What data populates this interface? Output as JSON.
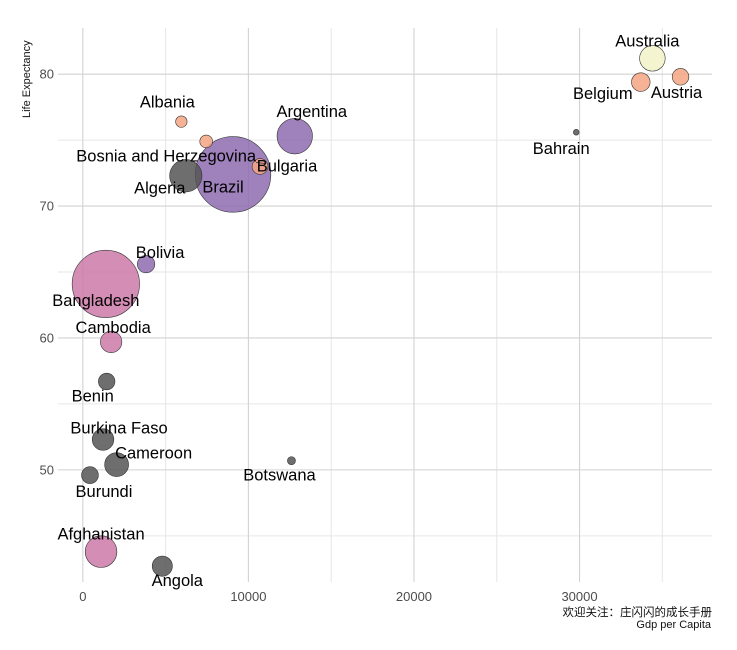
{
  "chart_data": {
    "type": "scatter",
    "subtype": "bubble",
    "xlabel": "Gdp per Capita",
    "ylabel": "Life Expectancy",
    "caption": "欢迎关注：庄闪闪的成长手册",
    "xlim": [
      -1500,
      38000
    ],
    "ylim": [
      41.5,
      83.5
    ],
    "x_ticks": [
      0,
      10000,
      20000,
      30000
    ],
    "y_ticks": [
      50,
      60,
      70,
      80
    ],
    "grid": true,
    "legend": "none",
    "points": [
      {
        "country": "Afghanistan",
        "x": 1100,
        "y": 43.8,
        "size": 31.9,
        "color": "#cc79a7"
      },
      {
        "country": "Albania",
        "x": 5950,
        "y": 76.4,
        "size": 3.6,
        "color": "#f4a582"
      },
      {
        "country": "Algeria",
        "x": 6220,
        "y": 72.3,
        "size": 33.3,
        "color": "#555555"
      },
      {
        "country": "Angola",
        "x": 4800,
        "y": 42.7,
        "size": 12.4,
        "color": "#555555"
      },
      {
        "country": "Argentina",
        "x": 12800,
        "y": 75.3,
        "size": 40.3,
        "color": "#8e6bb0"
      },
      {
        "country": "Australia",
        "x": 34400,
        "y": 81.2,
        "size": 20.4,
        "color": "#f2f2c9"
      },
      {
        "country": "Austria",
        "x": 36100,
        "y": 79.8,
        "size": 8.2,
        "color": "#f4a582"
      },
      {
        "country": "Bahrain",
        "x": 29800,
        "y": 75.6,
        "size": 0.7,
        "color": "#555555"
      },
      {
        "country": "Bangladesh",
        "x": 1390,
        "y": 64.1,
        "size": 150.4,
        "color": "#cc79a7"
      },
      {
        "country": "Belgium",
        "x": 33700,
        "y": 79.4,
        "size": 10.4,
        "color": "#f4a582"
      },
      {
        "country": "Benin",
        "x": 1440,
        "y": 56.7,
        "size": 8.1,
        "color": "#555555"
      },
      {
        "country": "Bolivia",
        "x": 3820,
        "y": 65.6,
        "size": 9.1,
        "color": "#8e6bb0"
      },
      {
        "country": "Bosnia and Herzegovina",
        "x": 7450,
        "y": 74.9,
        "size": 4.6,
        "color": "#f4a582"
      },
      {
        "country": "Botswana",
        "x": 12600,
        "y": 50.7,
        "size": 1.6,
        "color": "#555555"
      },
      {
        "country": "Brazil",
        "x": 9070,
        "y": 72.4,
        "size": 190.0,
        "color": "#8e6bb0"
      },
      {
        "country": "Bulgaria",
        "x": 10700,
        "y": 73.0,
        "size": 7.3,
        "color": "#f4a582"
      },
      {
        "country": "Burkina Faso",
        "x": 1220,
        "y": 52.3,
        "size": 14.3,
        "color": "#555555"
      },
      {
        "country": "Burundi",
        "x": 430,
        "y": 49.6,
        "size": 8.4,
        "color": "#555555"
      },
      {
        "country": "Cambodia",
        "x": 1710,
        "y": 59.7,
        "size": 14.1,
        "color": "#cc79a7"
      },
      {
        "country": "Cameroon",
        "x": 2040,
        "y": 50.4,
        "size": 17.7,
        "color": "#555555"
      }
    ]
  }
}
